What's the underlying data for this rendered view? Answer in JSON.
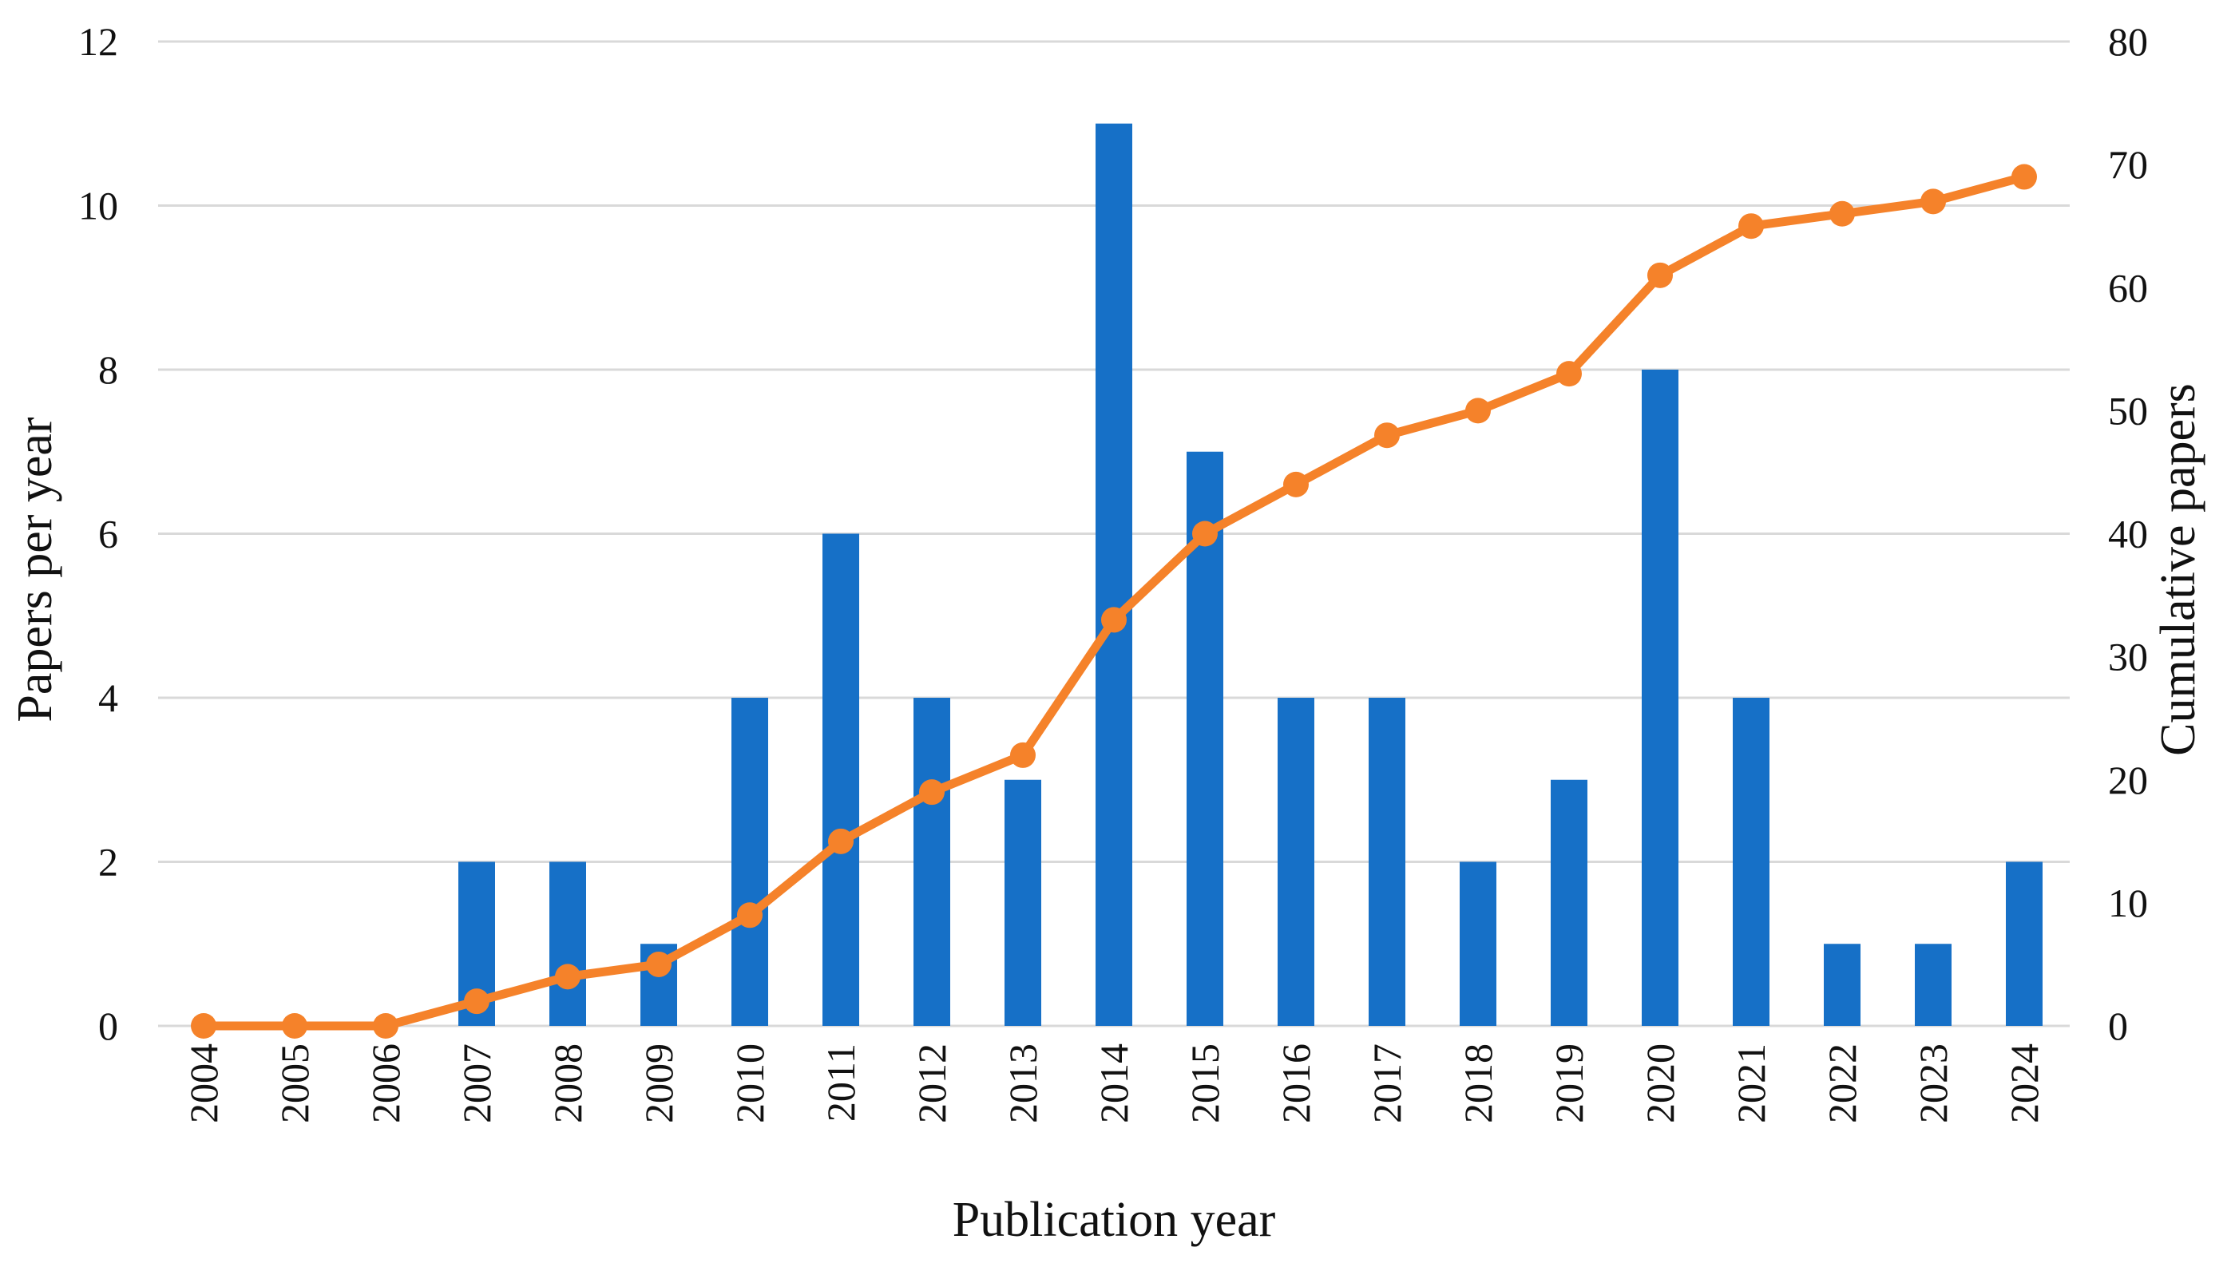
{
  "chart_data": {
    "type": "bar",
    "title": "",
    "xlabel": "Publication year",
    "ylabel": "Papers per year",
    "y2label": "Cumulative papers",
    "categories": [
      "2004",
      "2005",
      "2006",
      "2007",
      "2008",
      "2009",
      "2010",
      "2011",
      "2012",
      "2013",
      "2014",
      "2015",
      "2016",
      "2017",
      "2018",
      "2019",
      "2020",
      "2021",
      "2022",
      "2023",
      "2024"
    ],
    "ylim": [
      0,
      12
    ],
    "y_ticks": [
      "0",
      "2",
      "4",
      "6",
      "8",
      "10",
      "12"
    ],
    "y2lim": [
      0,
      80
    ],
    "y2_ticks": [
      "0",
      "10",
      "20",
      "30",
      "40",
      "50",
      "60",
      "70",
      "80"
    ],
    "grid": true,
    "legend": "none",
    "series": [
      {
        "type": "bar",
        "axis": "left",
        "color": "#1670c7",
        "values": [
          0,
          0,
          0,
          2,
          2,
          1,
          4,
          6,
          4,
          3,
          11,
          7,
          4,
          4,
          2,
          3,
          8,
          4,
          1,
          1,
          2
        ]
      },
      {
        "type": "line",
        "axis": "right",
        "color": "#f5822a",
        "markers": true,
        "values": [
          0,
          0,
          0,
          2,
          4,
          5,
          9,
          15,
          19,
          22,
          33,
          40,
          44,
          48,
          50,
          53,
          61,
          65,
          66,
          67,
          69
        ]
      }
    ]
  }
}
